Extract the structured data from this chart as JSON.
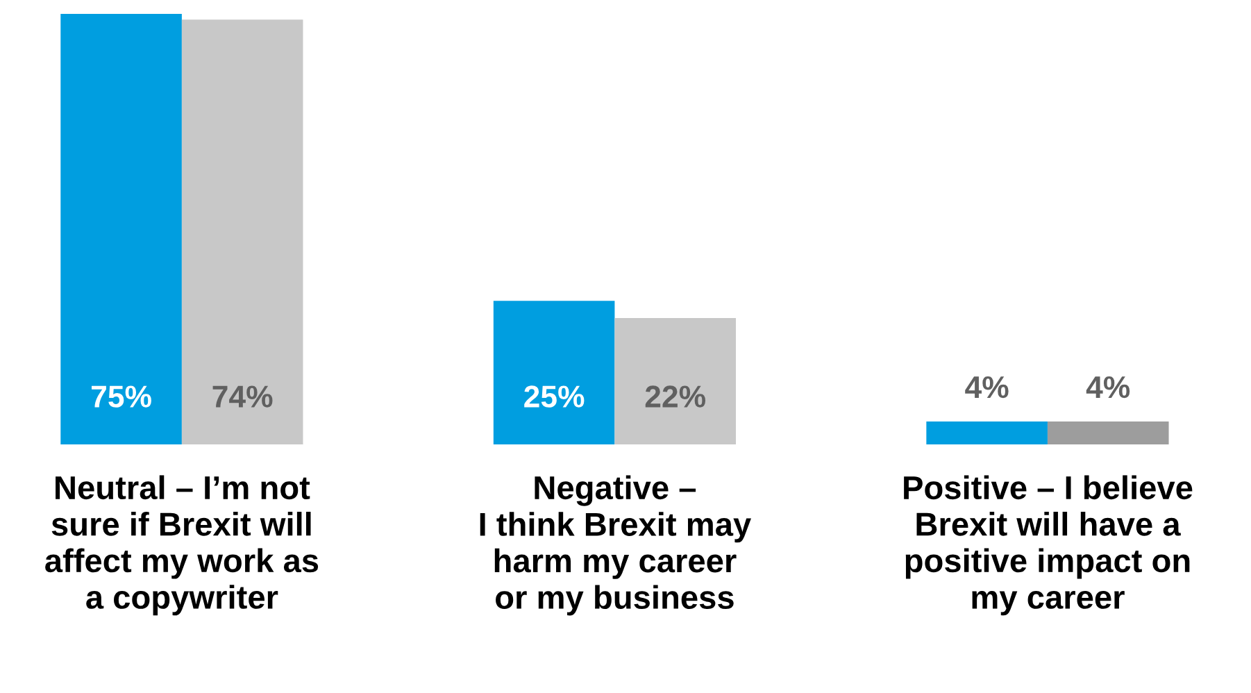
{
  "chart_data": {
    "type": "bar",
    "categories": [
      "Neutral – I’m not\nsure if Brexit will\naffect my work as\na copywriter",
      "Negative –\nI think Brexit may\nharm my career\nor my business",
      "Positive – I believe\nBrexit will have a\npositive impact on\nmy career"
    ],
    "series": [
      {
        "color": "#009ee0",
        "values": [
          75,
          25,
          4
        ],
        "value_labels": [
          "75%",
          "25%",
          "4%"
        ]
      },
      {
        "colors": [
          "#c8c8c8",
          "#c8c8c8",
          "#9d9d9d"
        ],
        "values": [
          74,
          22,
          4
        ],
        "value_labels": [
          "74%",
          "22%",
          "4%"
        ]
      }
    ],
    "grid": false,
    "legend": false
  }
}
